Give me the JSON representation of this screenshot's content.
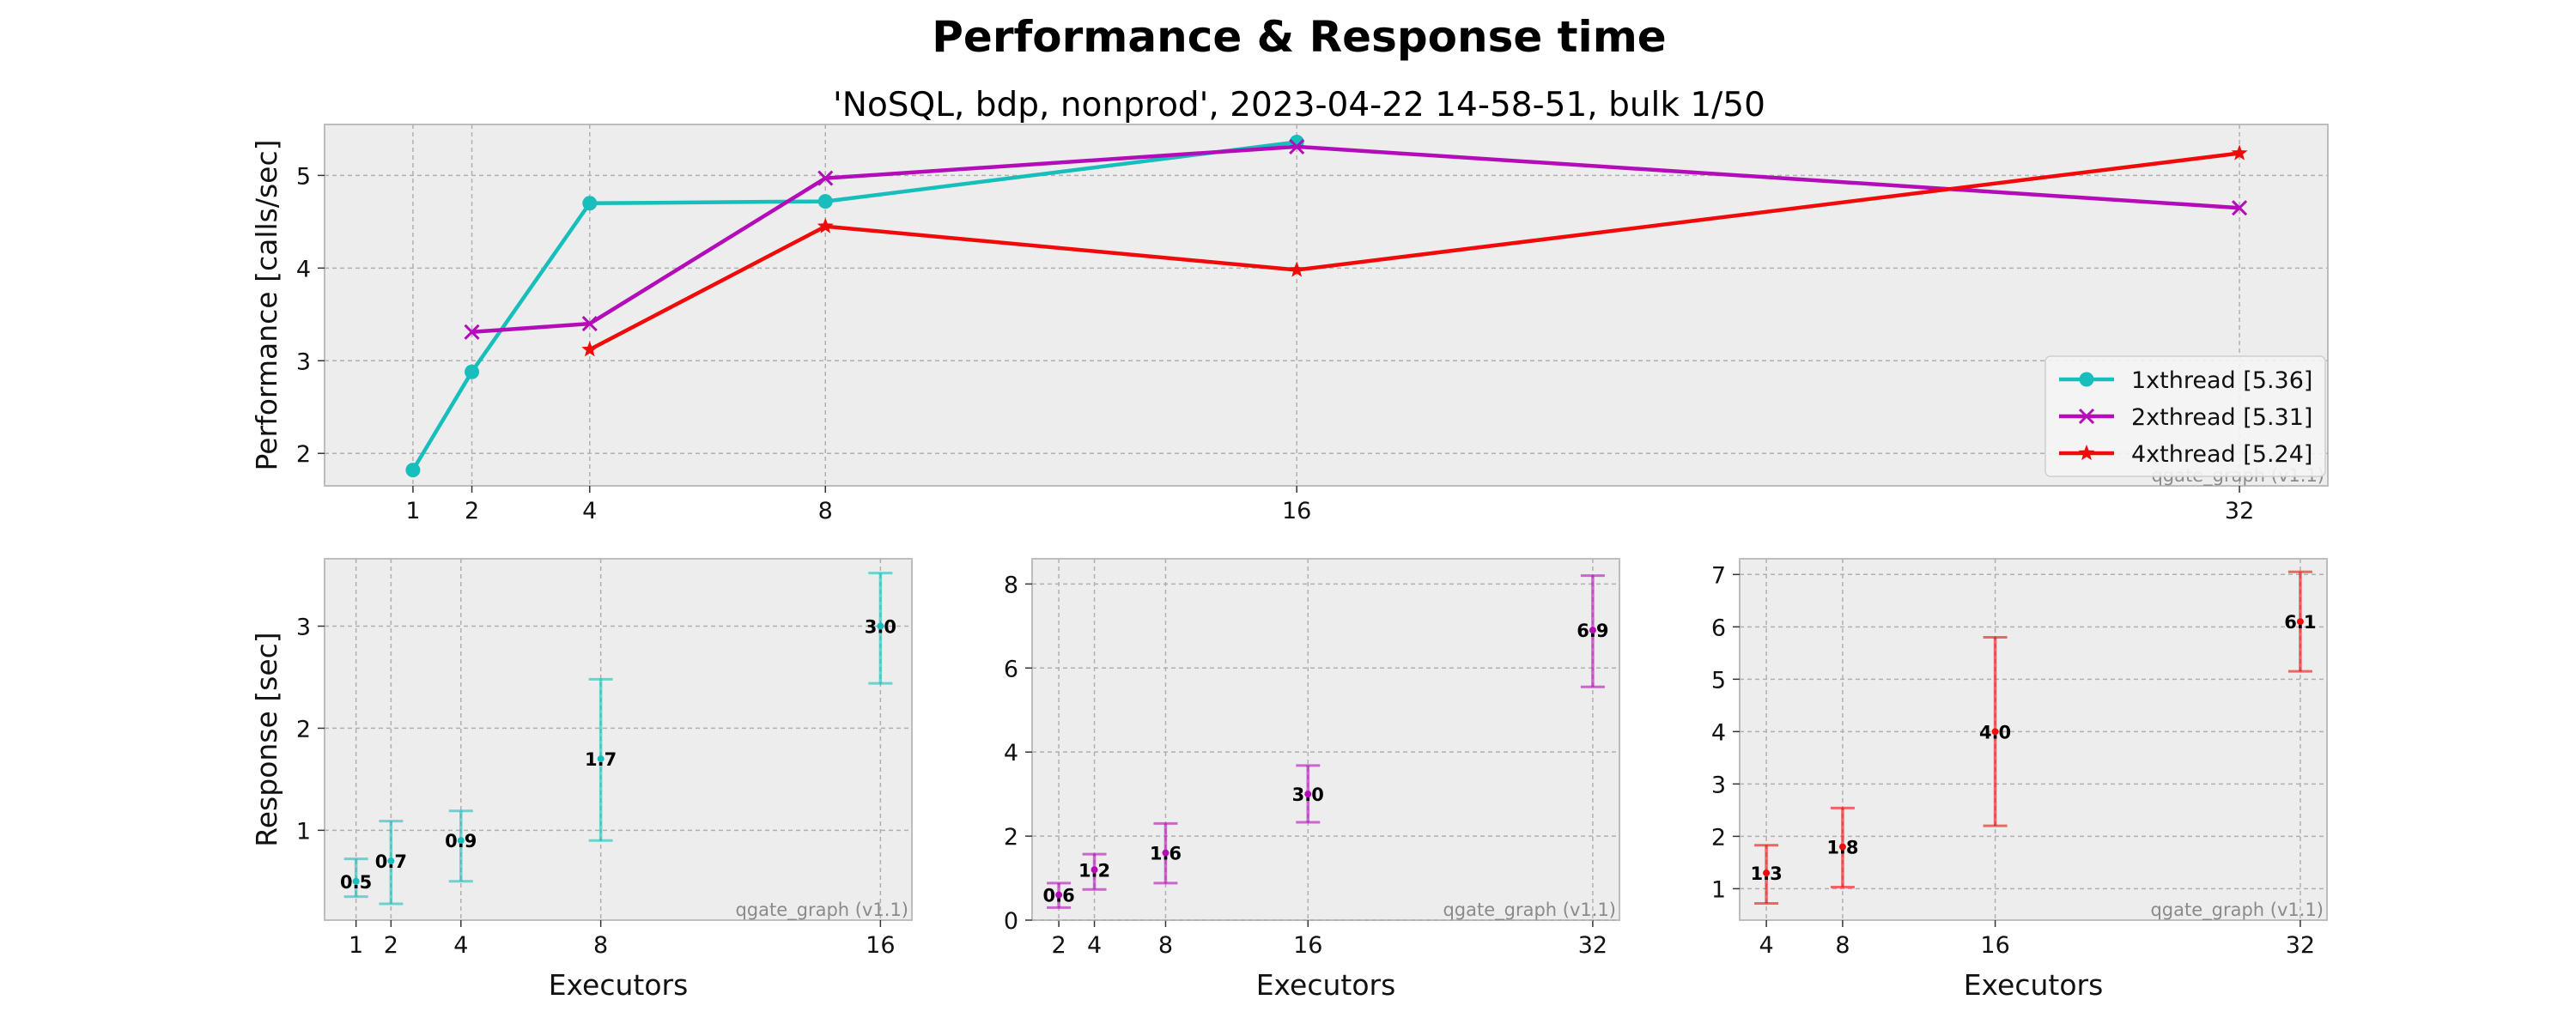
{
  "title": "Performance & Response time",
  "subtitle": "'NoSQL, bdp, nonprod', 2023-04-22 14-58-51, bulk 1/50",
  "watermark": "qgate_graph (v1.1)",
  "colors": {
    "s1": "#17BEBB",
    "s2": "#B30CB8",
    "s3": "#F00A0A",
    "background": "#EDEDED",
    "grid": "#B0B0B0"
  },
  "chart_data": [
    {
      "type": "line",
      "ylabel": "Performance [calls/sec]",
      "xlabel": "",
      "xticks": [
        1,
        2,
        4,
        8,
        16,
        32
      ],
      "xlim": [
        -0.5,
        33.5
      ],
      "yticks": [
        2,
        3,
        4,
        5
      ],
      "ylim": [
        1.65,
        5.55
      ],
      "grid": true,
      "legend_position": "bottom-right",
      "series": [
        {
          "name": "1xthread [5.36]",
          "marker": "circle",
          "color": "#17BEBB",
          "x": [
            1,
            2,
            4,
            8,
            16
          ],
          "y": [
            1.82,
            2.88,
            4.7,
            4.72,
            5.36
          ]
        },
        {
          "name": "2xthread [5.31]",
          "marker": "x",
          "color": "#B30CB8",
          "x": [
            2,
            4,
            8,
            16,
            32
          ],
          "y": [
            3.31,
            3.4,
            4.97,
            5.31,
            4.65
          ]
        },
        {
          "name": "4xthread [5.24]",
          "marker": "star",
          "color": "#F00A0A",
          "x": [
            4,
            8,
            16,
            32
          ],
          "y": [
            3.12,
            4.45,
            3.98,
            5.24
          ]
        }
      ]
    },
    {
      "type": "errorbar",
      "ylabel": "Response [sec]",
      "xlabel": "Executors",
      "color": "#17BEBB",
      "xticks": [
        1,
        2,
        4,
        8,
        16
      ],
      "xlim": [
        0.1,
        16.9
      ],
      "yticks": [
        1,
        2,
        3
      ],
      "ylim": [
        0.12,
        3.66
      ],
      "grid": true,
      "points": [
        {
          "x": 1,
          "y": 0.5,
          "low": 0.35,
          "high": 0.72,
          "label": "0.5"
        },
        {
          "x": 2,
          "y": 0.7,
          "low": 0.28,
          "high": 1.09,
          "label": "0.7"
        },
        {
          "x": 4,
          "y": 0.9,
          "low": 0.5,
          "high": 1.19,
          "label": "0.9"
        },
        {
          "x": 8,
          "y": 1.7,
          "low": 0.9,
          "high": 2.48,
          "label": "1.7"
        },
        {
          "x": 16,
          "y": 3.0,
          "low": 2.44,
          "high": 3.52,
          "label": "3.0"
        }
      ]
    },
    {
      "type": "errorbar",
      "ylabel": "",
      "xlabel": "Executors",
      "color": "#B30CB8",
      "xticks": [
        2,
        4,
        8,
        16,
        32
      ],
      "xlim": [
        0.5,
        33.5
      ],
      "yticks": [
        0,
        2,
        4,
        6,
        8
      ],
      "ylim": [
        0,
        8.6
      ],
      "grid": true,
      "points": [
        {
          "x": 2,
          "y": 0.6,
          "low": 0.3,
          "high": 0.88,
          "label": "0.6"
        },
        {
          "x": 4,
          "y": 1.2,
          "low": 0.73,
          "high": 1.57,
          "label": "1.2"
        },
        {
          "x": 8,
          "y": 1.6,
          "low": 0.88,
          "high": 2.3,
          "label": "1.6"
        },
        {
          "x": 16,
          "y": 3.0,
          "low": 2.33,
          "high": 3.68,
          "label": "3.0"
        },
        {
          "x": 32,
          "y": 6.9,
          "low": 5.55,
          "high": 8.2,
          "label": "6.9"
        }
      ]
    },
    {
      "type": "errorbar",
      "ylabel": "",
      "xlabel": "Executors",
      "color": "#F00A0A",
      "xticks": [
        4,
        8,
        16,
        32
      ],
      "xlim": [
        2.6,
        33.4
      ],
      "yticks": [
        1,
        2,
        3,
        4,
        5,
        6,
        7
      ],
      "ylim": [
        0.4,
        7.3
      ],
      "grid": true,
      "points": [
        {
          "x": 4,
          "y": 1.3,
          "low": 0.72,
          "high": 1.83,
          "label": "1.3"
        },
        {
          "x": 8,
          "y": 1.8,
          "low": 1.03,
          "high": 2.54,
          "label": "1.8"
        },
        {
          "x": 16,
          "y": 4.0,
          "low": 2.2,
          "high": 5.8,
          "label": "4.0"
        },
        {
          "x": 32,
          "y": 6.1,
          "low": 5.15,
          "high": 7.05,
          "label": "6.1"
        }
      ]
    }
  ]
}
